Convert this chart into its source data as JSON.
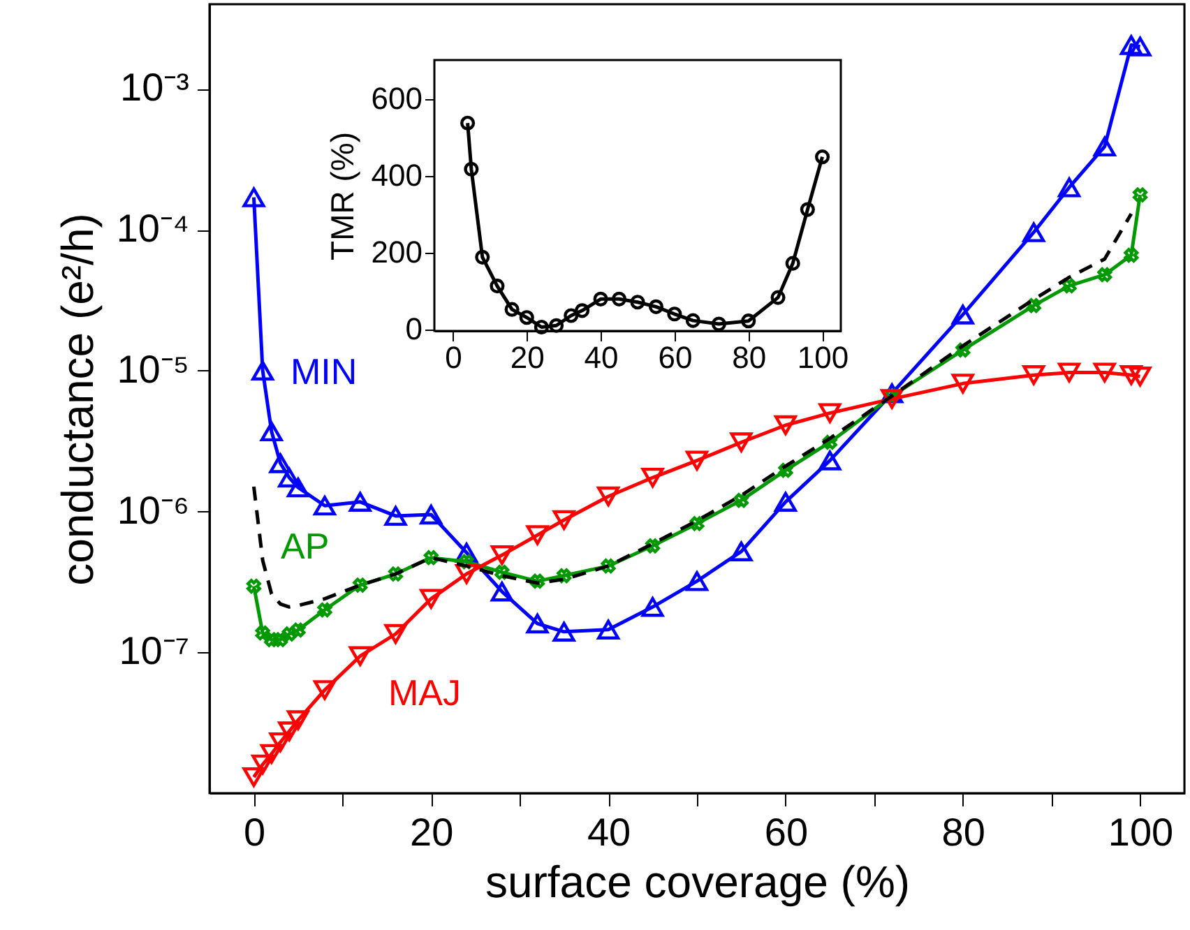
{
  "chart_data": [
    {
      "type": "line",
      "xlabel": "surface coverage (%)",
      "ylabel": "conductance (e²/h)",
      "xlim": [
        -5,
        105
      ],
      "xticks": [
        0,
        {
          "value": 10,
          "label": null
        },
        20,
        {
          "value": 30,
          "label": null
        },
        40,
        {
          "value": 50,
          "label": null
        },
        60,
        {
          "value": 70,
          "label": null
        },
        80,
        {
          "value": 90,
          "label": null
        },
        100
      ],
      "ylim": [
        1e-08,
        0.004
      ],
      "yticks": [
        {
          "value": 1e-07,
          "label": "10⁻⁷"
        },
        {
          "value": 1e-06,
          "label": "10⁻⁶"
        },
        {
          "value": 1e-05,
          "label": "10⁻⁵"
        },
        {
          "value": 0.0001,
          "label": "10⁻⁴"
        },
        {
          "value": 0.001,
          "label": "10⁻³"
        }
      ],
      "log": true,
      "grid": false,
      "legend": false,
      "series": [
        {
          "name": "MIN",
          "color": "#0000ff",
          "marker": "triangle",
          "line_style": "solid",
          "x": [
            0,
            1,
            2,
            3,
            4,
            5,
            8,
            12,
            16,
            20,
            24,
            28,
            32,
            35,
            40,
            45,
            50,
            55,
            60,
            65,
            72,
            80,
            88,
            92,
            96,
            99,
            100
          ],
          "values": [
            0.00017,
            1e-05,
            3.7e-06,
            2.2e-06,
            1.74e-06,
            1.48e-06,
            1.1e-06,
            1.17e-06,
            9.3e-07,
            9.5e-07,
            5.1e-07,
            2.7e-07,
            1.6e-07,
            1.4e-07,
            1.45e-07,
            2.1e-07,
            3.2e-07,
            5.2e-07,
            1.17e-06,
            2.3e-06,
            6.9e-06,
            2.5e-05,
            9.6e-05,
            0.0002,
            0.00039,
            0.00205,
            0.002
          ]
        },
        {
          "name": "AP",
          "color": "#009900",
          "marker": "cross",
          "line_style": "solid",
          "x": [
            0,
            1,
            2,
            3,
            4,
            5,
            8,
            12,
            16,
            20,
            24,
            28,
            32,
            35,
            40,
            45,
            50,
            55,
            60,
            65,
            72,
            80,
            88,
            92,
            96,
            99,
            100
          ],
          "values": [
            2.95e-07,
            1.37e-07,
            1.23e-07,
            1.23e-07,
            1.35e-07,
            1.44e-07,
            2e-07,
            3e-07,
            3.6e-07,
            4.7e-07,
            4.4e-07,
            3.7e-07,
            3.2e-07,
            3.5e-07,
            4.1e-07,
            5.7e-07,
            8.2e-07,
            1.2e-06,
            1.96e-06,
            3.1e-06,
            6.6e-06,
            1.4e-05,
            2.9e-05,
            4e-05,
            4.8e-05,
            6.6e-05,
            0.000177
          ]
        },
        {
          "name": "MAJ",
          "color": "#ff0000",
          "marker": "triangle-down",
          "line_style": "solid",
          "x": [
            0,
            1,
            2,
            3,
            4,
            5,
            8,
            12,
            16,
            20,
            24,
            28,
            32,
            35,
            40,
            45,
            50,
            55,
            60,
            65,
            72,
            80,
            88,
            92,
            96,
            99,
            100
          ],
          "values": [
            1.3e-08,
            1.6e-08,
            1.9e-08,
            2.3e-08,
            2.75e-08,
            3.3e-08,
            5.4e-08,
            9.4e-08,
            1.35e-07,
            2.4e-07,
            3.6e-07,
            4.9e-07,
            6.8e-07,
            8.7e-07,
            1.28e-06,
            1.74e-06,
            2.3e-06,
            3.1e-06,
            4.1e-06,
            5e-06,
            6.3e-06,
            8.1e-06,
            9.3e-06,
            9.7e-06,
            9.7e-06,
            9.3e-06,
            9.1e-06
          ]
        },
        {
          "color": "#000000",
          "marker": "none",
          "line_style": "dashed",
          "x": [
            0,
            1,
            2,
            3,
            4,
            5,
            8,
            12,
            16,
            20,
            24,
            28,
            32,
            35,
            40,
            45,
            50,
            55,
            60,
            65,
            72,
            80,
            88,
            92,
            96,
            99
          ],
          "values": [
            1.5e-06,
            4.5e-07,
            2.6e-07,
            2.2e-07,
            2.1e-07,
            2.15e-07,
            2.4e-07,
            3e-07,
            3.6e-07,
            4.7e-07,
            4.1e-07,
            3.5e-07,
            3.1e-07,
            3.3e-07,
            4.1e-07,
            5.9e-07,
            8.6e-07,
            1.3e-06,
            2.1e-06,
            3.3e-06,
            6.6e-06,
            1.5e-05,
            3.2e-05,
            4.6e-05,
            6.2e-05,
            0.00013
          ]
        }
      ]
    },
    {
      "type": "line",
      "ylabel": "TMR (%)",
      "xlim": [
        -5,
        105
      ],
      "xticks": [
        0,
        20,
        40,
        60,
        80,
        100
      ],
      "ylim": [
        -5,
        700
      ],
      "yticks": [
        0,
        200,
        400,
        600
      ],
      "grid": false,
      "legend": false,
      "series": [
        {
          "color": "#000000",
          "marker": "circle",
          "line_style": "solid",
          "x": [
            4,
            5,
            8,
            12,
            16,
            20,
            24,
            28,
            32,
            35,
            40,
            45,
            50,
            55,
            60,
            65,
            72,
            80,
            88,
            92,
            96,
            100
          ],
          "values": [
            536,
            416,
            187,
            112,
            51,
            30,
            5,
            9,
            35,
            48,
            78,
            78,
            70,
            58,
            39,
            22,
            13,
            21,
            82,
            171,
            311,
            448
          ]
        }
      ]
    }
  ]
}
